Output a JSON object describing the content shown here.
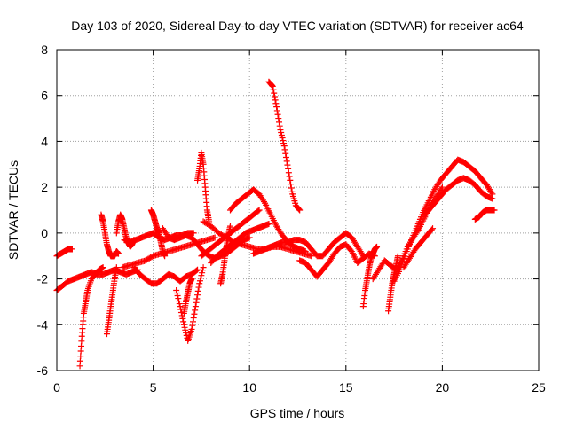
{
  "chart_data": {
    "type": "scatter",
    "title": "Day 103 of 2020, Sidereal Day-to-day VTEC variation (SDTVAR) for receiver ac64",
    "xlabel": "GPS time / hours",
    "ylabel": "SDTVAR / TECUs",
    "xlim": [
      0,
      25
    ],
    "ylim": [
      -6,
      8
    ],
    "xticks": [
      0,
      5,
      10,
      15,
      20,
      25
    ],
    "xtick_labels": [
      "0",
      "5",
      "10",
      "15",
      "20",
      "25"
    ],
    "yticks": [
      -6,
      -4,
      -2,
      0,
      2,
      4,
      6,
      8
    ],
    "ytick_labels": [
      "-6",
      "-4",
      "-2",
      "0",
      "2",
      "4",
      "6",
      "8"
    ],
    "grid": true,
    "marker": "+",
    "color": "#ff0000",
    "series": [
      {
        "name": "s1",
        "x": [
          0.0,
          0.2,
          0.4,
          0.6,
          0.8
        ],
        "y": [
          -1.0,
          -0.9,
          -0.8,
          -0.7,
          -0.7
        ]
      },
      {
        "name": "s2",
        "x": [
          0.0,
          0.3,
          0.6,
          0.9,
          1.2,
          1.5,
          1.8,
          2.1,
          2.4,
          2.7,
          3.0,
          3.3,
          3.6,
          3.9,
          4.2
        ],
        "y": [
          -2.5,
          -2.3,
          -2.1,
          -2.0,
          -1.9,
          -1.8,
          -1.7,
          -1.8,
          -1.8,
          -1.7,
          -1.6,
          -1.7,
          -1.8,
          -1.7,
          -1.6
        ]
      },
      {
        "name": "s3",
        "x": [
          1.2,
          1.3,
          1.4,
          1.5,
          1.6,
          1.8,
          2.0,
          2.2,
          2.4
        ],
        "y": [
          -5.8,
          -4.5,
          -3.5,
          -3.0,
          -2.5,
          -2.0,
          -1.8,
          -1.6,
          -1.5
        ]
      },
      {
        "name": "s4",
        "x": [
          2.3,
          2.4,
          2.5,
          2.6,
          2.7,
          2.8,
          2.9,
          3.0,
          3.1,
          3.2
        ],
        "y": [
          0.8,
          0.5,
          0.0,
          -0.5,
          -0.8,
          -1.0,
          -1.0,
          -1.0,
          -0.8,
          -0.9
        ]
      },
      {
        "name": "s5",
        "x": [
          2.6,
          2.7,
          2.8,
          2.9,
          3.0,
          3.1
        ],
        "y": [
          -4.4,
          -3.8,
          -3.2,
          -2.6,
          -2.0,
          -1.5
        ]
      },
      {
        "name": "s6",
        "x": [
          3.1,
          3.2,
          3.3,
          3.4,
          3.5,
          3.6,
          3.7,
          3.8,
          3.9,
          4.0
        ],
        "y": [
          0.0,
          0.5,
          0.8,
          0.6,
          0.2,
          -0.2,
          -0.4,
          -0.6,
          -0.5,
          -0.3
        ]
      },
      {
        "name": "s7",
        "x": [
          3.4,
          3.8,
          4.2,
          4.6,
          5.0,
          5.4,
          5.8,
          6.2,
          6.6,
          7.0,
          7.4,
          7.8,
          8.2
        ],
        "y": [
          -1.5,
          -1.4,
          -1.3,
          -1.2,
          -1.0,
          -0.9,
          -0.8,
          -0.7,
          -0.6,
          -0.5,
          -0.4,
          -0.3,
          -0.2
        ]
      },
      {
        "name": "s8",
        "x": [
          3.5,
          3.8,
          4.1,
          4.4,
          4.7,
          5.0,
          5.3,
          5.6,
          5.9,
          6.2,
          6.5,
          6.8,
          7.1
        ],
        "y": [
          -0.3,
          -0.4,
          -0.3,
          -0.2,
          -0.1,
          0.0,
          -0.2,
          -0.3,
          -0.2,
          -0.1,
          -0.1,
          0.0,
          0.0
        ]
      },
      {
        "name": "s9",
        "x": [
          4.0,
          4.3,
          4.6,
          4.9,
          5.2,
          5.5,
          5.8,
          6.1,
          6.4,
          6.7,
          7.0,
          7.3
        ],
        "y": [
          -1.5,
          -1.8,
          -2.0,
          -2.2,
          -2.2,
          -2.0,
          -1.8,
          -1.9,
          -2.1,
          -1.9,
          -1.8,
          -1.6
        ]
      },
      {
        "name": "s10",
        "x": [
          4.9,
          5.0,
          5.1,
          5.2,
          5.3,
          5.4,
          5.5,
          5.6
        ],
        "y": [
          1.0,
          0.8,
          0.5,
          0.2,
          0.0,
          -0.4,
          -0.8,
          -1.0
        ]
      },
      {
        "name": "s11",
        "x": [
          5.5,
          5.8,
          6.1,
          6.4,
          6.7,
          7.0,
          7.3,
          7.6,
          7.9,
          8.2,
          8.5,
          8.8,
          9.1,
          9.4,
          9.7,
          10.0
        ],
        "y": [
          0.2,
          -0.2,
          -0.3,
          -0.2,
          -0.1,
          -0.2,
          -0.5,
          -0.8,
          -1.0,
          -1.1,
          -1.0,
          -0.9,
          -0.7,
          -0.5,
          -0.3,
          -0.2
        ]
      },
      {
        "name": "s12",
        "x": [
          6.2,
          6.4,
          6.6,
          6.8,
          7.0,
          7.2,
          7.4,
          7.6
        ],
        "y": [
          -2.5,
          -3.2,
          -4.0,
          -4.7,
          -4.2,
          -3.2,
          -2.2,
          -1.5
        ]
      },
      {
        "name": "s13",
        "x": [
          6.6,
          6.7,
          6.8,
          6.9,
          7.0
        ],
        "y": [
          -3.5,
          -3.0,
          -2.6,
          -2.2,
          -2.0
        ]
      },
      {
        "name": "s14",
        "x": [
          7.3,
          7.4,
          7.5,
          7.6,
          7.7,
          7.8,
          7.9
        ],
        "y": [
          2.3,
          2.8,
          3.5,
          3.0,
          2.0,
          1.0,
          0.5
        ]
      },
      {
        "name": "s15",
        "x": [
          7.5,
          7.8,
          8.1,
          8.4,
          8.7,
          9.0,
          9.3,
          9.6,
          9.9,
          10.2,
          10.5
        ],
        "y": [
          -1.0,
          -0.8,
          -0.6,
          -0.4,
          -0.2,
          0.0,
          0.2,
          0.4,
          0.6,
          0.8,
          1.0
        ]
      },
      {
        "name": "s16",
        "x": [
          7.6,
          8.0,
          8.4,
          8.8,
          9.2,
          9.6,
          10.0,
          10.4,
          10.8,
          11.2,
          11.6,
          12.0,
          12.4,
          12.8,
          13.2
        ],
        "y": [
          0.5,
          0.3,
          0.0,
          -0.2,
          -0.4,
          -0.5,
          -0.6,
          -0.7,
          -0.7,
          -0.6,
          -0.6,
          -0.7,
          -0.8,
          -0.9,
          -1.0
        ]
      },
      {
        "name": "s17",
        "x": [
          8.0,
          8.3,
          8.6,
          8.9,
          9.2,
          9.5,
          9.8,
          10.1,
          10.4,
          10.7,
          11.0
        ],
        "y": [
          -1.3,
          -1.0,
          -0.8,
          -0.6,
          -0.4,
          -0.2,
          0.0,
          0.1,
          0.2,
          0.3,
          0.4
        ]
      },
      {
        "name": "s18",
        "x": [
          8.5,
          8.6,
          8.7,
          8.8,
          8.9,
          9.0
        ],
        "y": [
          -2.2,
          -1.8,
          -1.2,
          -0.6,
          -0.1,
          0.3
        ]
      },
      {
        "name": "s19",
        "x": [
          9.0,
          9.3,
          9.6,
          9.9,
          10.2,
          10.5,
          10.8,
          11.1,
          11.4,
          11.7,
          12.0,
          12.3,
          12.6,
          12.9
        ],
        "y": [
          1.0,
          1.3,
          1.5,
          1.7,
          1.9,
          1.7,
          1.3,
          0.8,
          0.3,
          -0.1,
          -0.4,
          -0.6,
          -0.7,
          -0.8
        ]
      },
      {
        "name": "s20",
        "x": [
          10.2,
          10.5,
          10.8,
          11.1,
          11.4,
          11.7,
          12.0,
          12.3,
          12.6,
          12.9,
          13.2,
          13.5,
          13.8,
          14.1,
          14.4,
          14.7,
          15.0,
          15.3,
          15.6,
          15.9
        ],
        "y": [
          -0.9,
          -0.8,
          -0.7,
          -0.6,
          -0.5,
          -0.4,
          -0.4,
          -0.3,
          -0.3,
          -0.4,
          -0.7,
          -1.0,
          -1.0,
          -0.7,
          -0.4,
          -0.2,
          0.0,
          -0.2,
          -0.6,
          -1.0
        ]
      },
      {
        "name": "s21",
        "x": [
          11.0,
          11.2,
          11.4,
          11.6,
          11.8,
          12.0,
          12.2,
          12.4,
          12.6
        ],
        "y": [
          6.6,
          6.4,
          5.5,
          4.5,
          3.8,
          2.8,
          1.8,
          1.2,
          1.0
        ]
      },
      {
        "name": "s22",
        "x": [
          12.6,
          12.9,
          13.2,
          13.5,
          13.8,
          14.1,
          14.4,
          14.7,
          15.0,
          15.3,
          15.6,
          15.9,
          16.2,
          16.5
        ],
        "y": [
          -1.2,
          -1.3,
          -1.6,
          -1.9,
          -1.6,
          -1.3,
          -0.9,
          -0.6,
          -0.5,
          -0.8,
          -1.3,
          -1.1,
          -0.9,
          -1.0
        ]
      },
      {
        "name": "s23",
        "x": [
          15.9,
          16.0,
          16.1,
          16.2,
          16.3,
          16.4,
          16.5,
          16.6
        ],
        "y": [
          -3.2,
          -2.5,
          -2.0,
          -1.5,
          -1.1,
          -0.9,
          -0.7,
          -0.6
        ]
      },
      {
        "name": "s24",
        "x": [
          16.4,
          16.7,
          17.0,
          17.3,
          17.6,
          17.9,
          18.2,
          18.5,
          18.8,
          19.1,
          19.4,
          19.7,
          20.0
        ],
        "y": [
          -2.0,
          -1.6,
          -1.2,
          -1.4,
          -1.6,
          -1.2,
          -0.6,
          -0.2,
          0.2,
          0.7,
          1.2,
          1.6,
          2.0
        ]
      },
      {
        "name": "s25",
        "x": [
          17.2,
          17.3,
          17.4,
          17.5,
          17.6,
          17.7
        ],
        "y": [
          -3.4,
          -2.8,
          -2.2,
          -1.8,
          -1.4,
          -1.0
        ]
      },
      {
        "name": "s26",
        "x": [
          17.5,
          17.8,
          18.1,
          18.4,
          18.7,
          19.0,
          19.3,
          19.6,
          19.9,
          20.2,
          20.5,
          20.8,
          21.1,
          21.4,
          21.7,
          22.0,
          22.3,
          22.6
        ],
        "y": [
          -2.1,
          -1.6,
          -0.9,
          -0.3,
          0.3,
          0.9,
          1.4,
          1.9,
          2.3,
          2.6,
          2.9,
          3.2,
          3.1,
          2.9,
          2.7,
          2.4,
          2.1,
          1.7
        ]
      },
      {
        "name": "s27",
        "x": [
          18.0,
          18.3,
          18.6,
          18.9,
          19.2,
          19.5
        ],
        "y": [
          -1.5,
          -1.1,
          -0.7,
          -0.4,
          -0.1,
          0.2
        ]
      },
      {
        "name": "s28",
        "x": [
          19.0,
          19.3,
          19.6,
          19.9,
          20.2,
          20.5,
          20.8,
          21.1,
          21.4,
          21.7,
          22.0,
          22.3,
          22.6
        ],
        "y": [
          0.8,
          1.0,
          1.3,
          1.6,
          1.9,
          2.1,
          2.3,
          2.4,
          2.3,
          2.1,
          1.8,
          1.6,
          1.5
        ]
      },
      {
        "name": "s29",
        "x": [
          21.7,
          21.9,
          22.1,
          22.3,
          22.5,
          22.7
        ],
        "y": [
          0.6,
          0.7,
          0.9,
          1.0,
          1.0,
          1.0
        ]
      }
    ]
  }
}
